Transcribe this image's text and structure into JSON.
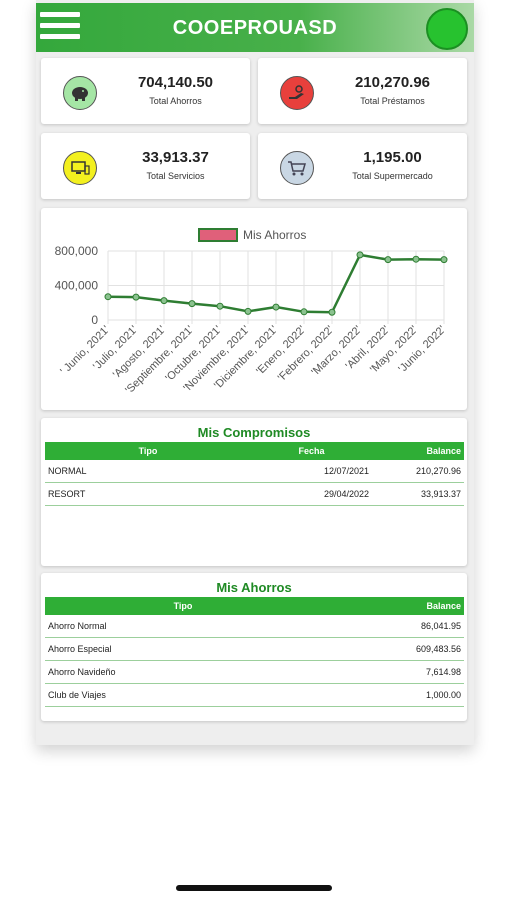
{
  "header": {
    "title": "COOEPROUASD"
  },
  "stats": [
    {
      "value": "704,140.50",
      "label": "Total Ahorros",
      "icon": "piggy-bank-icon",
      "color": "#a5e6a5"
    },
    {
      "value": "210,270.96",
      "label": "Total Préstamos",
      "icon": "loan-hand-icon",
      "color": "#e8403c"
    },
    {
      "value": "33,913.37",
      "label": "Total Servicios",
      "icon": "services-icon",
      "color": "#f3f01f"
    },
    {
      "value": "1,195.00",
      "label": "Total Supermercado",
      "icon": "cart-icon",
      "color": "#c9d7e4"
    }
  ],
  "chart_data": {
    "type": "line",
    "legend": "Mis Ahorros",
    "legend_position": "top",
    "categories": [
      "' Junio, 2021'",
      "'Julio, 2021'",
      "'Agosto, 2021'",
      "'Septiembre, 2021'",
      "'Octubre, 2021'",
      "'Noviembre, 2021'",
      "'Diciembre, 2021'",
      "'Enero, 2022'",
      "'Febrero, 2022'",
      "'Marzo, 2022'",
      "'Abril, 2022'",
      "'Mayo, 2022'",
      "'Junio, 2022'"
    ],
    "values": [
      270000,
      265000,
      225000,
      190000,
      160000,
      100000,
      150000,
      95000,
      90000,
      755000,
      700000,
      705000,
      700000
    ],
    "yticks": [
      "800,000",
      "400,000",
      "0"
    ],
    "ylim": [
      0,
      800000
    ],
    "line_color": "#2e7d32",
    "legend_fill": "#e0607a",
    "grid": true
  },
  "compromisos": {
    "title": "Mis Compromisos",
    "headers": [
      "Tipo",
      "Fecha",
      "Balance"
    ],
    "rows": [
      [
        "NORMAL",
        "12/07/2021",
        "210,270.96"
      ],
      [
        "RESORT",
        "29/04/2022",
        "33,913.37"
      ]
    ]
  },
  "ahorros": {
    "title": "Mis Ahorros",
    "headers": [
      "Tipo",
      "Balance"
    ],
    "rows": [
      [
        "Ahorro Normal",
        "86,041.95"
      ],
      [
        "Ahorro Especial",
        "609,483.56"
      ],
      [
        "Ahorro Navideño",
        "7,614.98"
      ],
      [
        "Club de Viajes",
        "1,000.00"
      ]
    ]
  }
}
